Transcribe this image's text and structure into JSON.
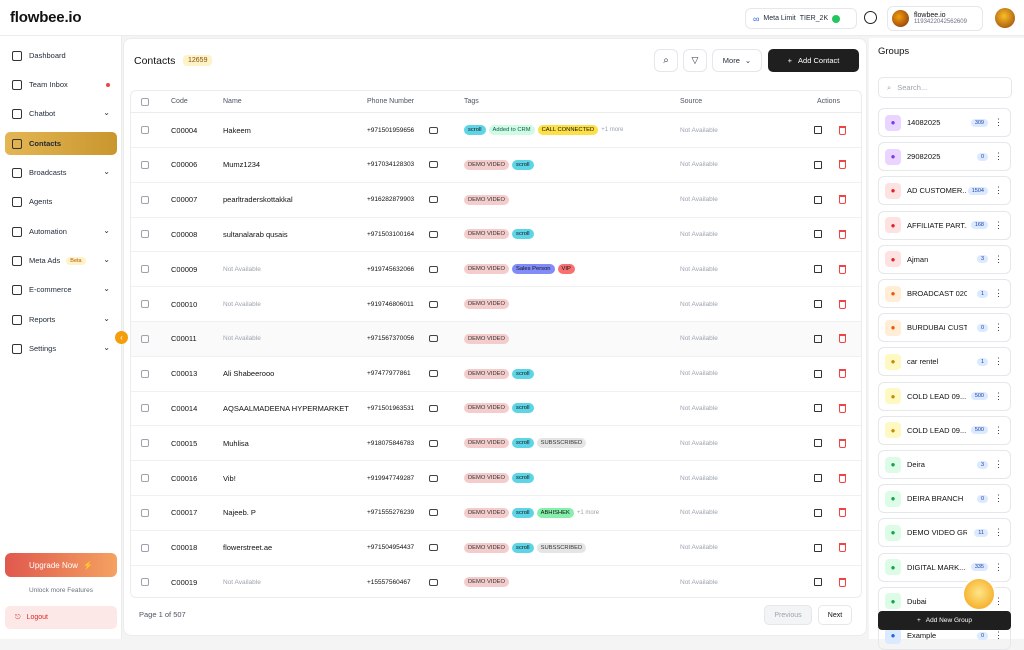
{
  "app": {
    "logo": "flowbee.io"
  },
  "topbar": {
    "meta_limit_label": "Meta Limit",
    "tier": "TIER_2K",
    "status_color": "#22c55e",
    "profile_name": "flowbee.io",
    "profile_phone": "1193422042562609"
  },
  "sidebar": {
    "items": [
      {
        "label": "Dashboard",
        "icon": "dashboard-icon"
      },
      {
        "label": "Team Inbox",
        "icon": "inbox-icon"
      },
      {
        "label": "Chatbot",
        "icon": "chatbot-icon"
      },
      {
        "label": "Contacts",
        "icon": "contacts-icon"
      },
      {
        "label": "Broadcasts",
        "icon": "broadcast-icon"
      },
      {
        "label": "Agents",
        "icon": "agents-icon"
      },
      {
        "label": "Automation",
        "icon": "automation-icon"
      },
      {
        "label": "Meta Ads",
        "icon": "meta-icon",
        "badge": "Beta"
      },
      {
        "label": "E-commerce",
        "icon": "ecommerce-icon"
      },
      {
        "label": "Reports",
        "icon": "reports-icon"
      },
      {
        "label": "Settings",
        "icon": "settings-icon"
      }
    ],
    "upgrade_label": "Upgrade Now",
    "unlock_text": "Unlock more Features",
    "logout_label": "Logout"
  },
  "main": {
    "title": "Contacts",
    "count": "12659",
    "more_label": "More",
    "add_contact_label": "Add Contact",
    "columns": [
      "Code",
      "Name",
      "Phone Number",
      "Tags",
      "Source",
      "Actions"
    ],
    "rows": [
      {
        "code": "C00004",
        "name": "Hakeem",
        "phone": "+971501959656",
        "tags": [
          [
            "scroll",
            "scroll"
          ],
          [
            "Added to CRM",
            "crm"
          ],
          [
            "CALL CONNECTED",
            "call"
          ]
        ],
        "more": "+1 more",
        "source": "Not Available"
      },
      {
        "code": "C00006",
        "name": "Mumz1234",
        "phone": "+917034128303",
        "tags": [
          [
            "DEMO VIDEO",
            "demo"
          ],
          [
            "scroll",
            "scroll"
          ]
        ],
        "more": "",
        "source": "Not Available"
      },
      {
        "code": "C00007",
        "name": "pearltraderskottakkal",
        "phone": "+916282879903",
        "tags": [
          [
            "DEMO VIDEO",
            "demo"
          ]
        ],
        "more": "",
        "source": "Not Available"
      },
      {
        "code": "C00008",
        "name": "sultanalarab qusais",
        "phone": "+971503100164",
        "tags": [
          [
            "DEMO VIDEO",
            "demo"
          ],
          [
            "scroll",
            "scroll"
          ]
        ],
        "more": "",
        "source": "Not Available"
      },
      {
        "code": "C00009",
        "name": "Not Available",
        "phone": "+919745632066",
        "tags": [
          [
            "DEMO VIDEO",
            "demo"
          ],
          [
            "Sales Person",
            "sales"
          ],
          [
            "VIP",
            "vip"
          ]
        ],
        "more": "",
        "source": "Not Available"
      },
      {
        "code": "C00010",
        "name": "Not Available",
        "phone": "+919746806011",
        "tags": [
          [
            "DEMO VIDEO",
            "demo"
          ]
        ],
        "more": "",
        "source": "Not Available"
      },
      {
        "code": "C00011",
        "name": "Not Available",
        "phone": "+971567370056",
        "tags": [
          [
            "DEMO VIDEO",
            "demo"
          ]
        ],
        "more": "",
        "source": "Not Available"
      },
      {
        "code": "C00013",
        "name": "Ali Shabeerooo",
        "phone": "+97477977861",
        "tags": [
          [
            "DEMO VIDEO",
            "demo"
          ],
          [
            "scroll",
            "scroll"
          ]
        ],
        "more": "",
        "source": "Not Available"
      },
      {
        "code": "C00014",
        "name": "AQSAALMADEENA HYPERMARKET",
        "phone": "+971501963531",
        "tags": [
          [
            "DEMO VIDEO",
            "demo"
          ],
          [
            "scroll",
            "scroll"
          ]
        ],
        "more": "",
        "source": "Not Available"
      },
      {
        "code": "C00015",
        "name": "Muhlisa",
        "phone": "+918075846783",
        "tags": [
          [
            "DEMO VIDEO",
            "demo"
          ],
          [
            "scroll",
            "scroll"
          ],
          [
            "SUBSSCRIBED",
            "sub"
          ]
        ],
        "more": "",
        "source": "Not Available"
      },
      {
        "code": "C00016",
        "name": "Vib!",
        "phone": "+919947749287",
        "tags": [
          [
            "DEMO VIDEO",
            "demo"
          ],
          [
            "scroll",
            "scroll"
          ]
        ],
        "more": "",
        "source": "Not Available"
      },
      {
        "code": "C00017",
        "name": "Najeeb. P",
        "phone": "+971555276239",
        "tags": [
          [
            "DEMO VIDEO",
            "demo"
          ],
          [
            "scroll",
            "scroll"
          ],
          [
            "ABHISHEK",
            "abh"
          ]
        ],
        "more": "+1 more",
        "source": "Not Available"
      },
      {
        "code": "C00018",
        "name": "flowerstreet.ae",
        "phone": "+971504954437",
        "tags": [
          [
            "DEMO VIDEO",
            "demo"
          ],
          [
            "scroll",
            "scroll"
          ],
          [
            "SUBSSCRIBED",
            "sub"
          ]
        ],
        "more": "",
        "source": "Not Available"
      },
      {
        "code": "C00019",
        "name": "Not Available",
        "phone": "+15557560467",
        "tags": [
          [
            "DEMO VIDEO",
            "demo"
          ]
        ],
        "more": "",
        "source": "Not Available"
      }
    ],
    "pager_text": "Page 1 of 507",
    "prev_label": "Previous",
    "next_label": "Next"
  },
  "groups": {
    "title": "Groups",
    "search_placeholder": "Search...",
    "items": [
      {
        "name": "14082025",
        "count": "309",
        "color": "#e9d5ff",
        "icon": "#7c3aed"
      },
      {
        "name": "29082025",
        "count": "0",
        "color": "#e9d5ff",
        "icon": "#7c3aed"
      },
      {
        "name": "AD CUSTOMER...",
        "count": "1504",
        "color": "#fee2e2",
        "icon": "#dc2626"
      },
      {
        "name": "AFFILIATE PART...",
        "count": "168",
        "color": "#fee2e2",
        "icon": "#dc2626"
      },
      {
        "name": "Ajman",
        "count": "3",
        "color": "#fee2e2",
        "icon": "#dc2626"
      },
      {
        "name": "BROADCAST 020...",
        "count": "1",
        "color": "#ffedd5",
        "icon": "#ea580c"
      },
      {
        "name": "BURDUBAI CUST...",
        "count": "0",
        "color": "#ffedd5",
        "icon": "#ea580c"
      },
      {
        "name": "car rentel",
        "count": "1",
        "color": "#fef9c3",
        "icon": "#ca8a04"
      },
      {
        "name": "COLD LEAD 09...",
        "count": "500",
        "color": "#fef9c3",
        "icon": "#ca8a04"
      },
      {
        "name": "COLD LEAD 09...",
        "count": "500",
        "color": "#fef9c3",
        "icon": "#ca8a04"
      },
      {
        "name": "Deira",
        "count": "3",
        "color": "#dcfce7",
        "icon": "#16a34a"
      },
      {
        "name": "DEIRA BRANCH",
        "count": "0",
        "color": "#dcfce7",
        "icon": "#16a34a"
      },
      {
        "name": "DEMO VIDEO GR...",
        "count": "11",
        "color": "#dcfce7",
        "icon": "#16a34a"
      },
      {
        "name": "DIGITAL MARK...",
        "count": "335",
        "color": "#dcfce7",
        "icon": "#16a34a"
      },
      {
        "name": "Dubai",
        "count": "",
        "color": "#dcfce7",
        "icon": "#16a34a"
      },
      {
        "name": "Example",
        "count": "0",
        "color": "#dbeafe",
        "icon": "#2563eb"
      }
    ],
    "add_group_label": "Add New Group"
  }
}
